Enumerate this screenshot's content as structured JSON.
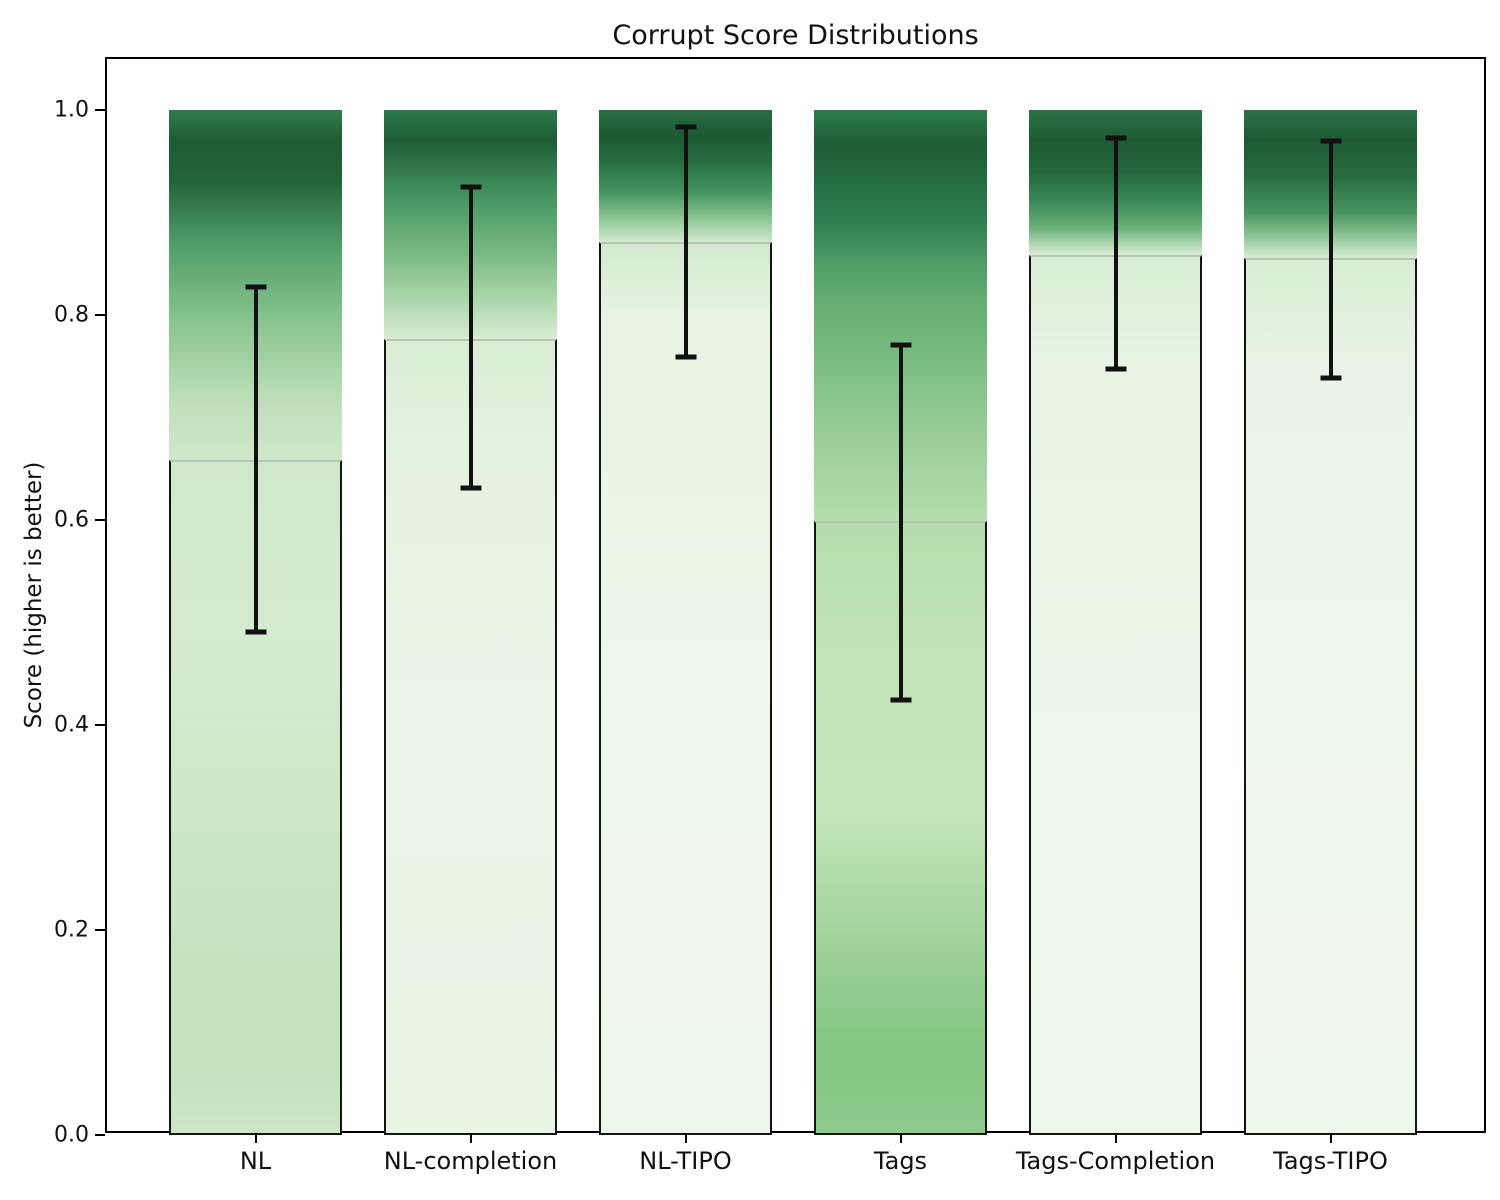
{
  "chart_data": {
    "type": "bar",
    "title": "Corrupt Score Distributions",
    "ylabel": "Score (higher is better)",
    "xlabel": "",
    "ylim": [
      0.0,
      1.0
    ],
    "yticks": [
      0.0,
      0.2,
      0.4,
      0.6,
      0.8,
      1.0
    ],
    "ytick_labels": [
      "0.0",
      "0.2",
      "0.4",
      "0.6",
      "0.8",
      "1.0"
    ],
    "categories": [
      "NL",
      "NL-completion",
      "NL-TIPO",
      "Tags",
      "Tags-Completion",
      "Tags-TIPO"
    ],
    "bar_top": 1.0,
    "grid": false,
    "legend": false,
    "series": [
      {
        "category": "NL",
        "mean": 0.659,
        "err_low": 0.491,
        "err_high": 0.827,
        "gradient": [
          {
            "pos": 0,
            "color": "#2f7d4d"
          },
          {
            "pos": 3,
            "color": "#1e5c35"
          },
          {
            "pos": 7,
            "color": "#236339"
          },
          {
            "pos": 13,
            "color": "#4f9d68"
          },
          {
            "pos": 20,
            "color": "#85c18e"
          },
          {
            "pos": 28,
            "color": "#bcdeb7"
          },
          {
            "pos": 34,
            "color": "#cfe8ca"
          },
          {
            "pos": 50,
            "color": "#d5ebd0"
          },
          {
            "pos": 78,
            "color": "#c8e4c2"
          },
          {
            "pos": 93,
            "color": "#c2e1bc"
          },
          {
            "pos": 100,
            "color": "#cde7c8"
          }
        ]
      },
      {
        "category": "NL-completion",
        "mean": 0.777,
        "err_low": 0.631,
        "err_high": 0.925,
        "gradient": [
          {
            "pos": 0,
            "color": "#2c7a4a"
          },
          {
            "pos": 3,
            "color": "#1e5c35"
          },
          {
            "pos": 9,
            "color": "#4a9964"
          },
          {
            "pos": 14,
            "color": "#7ab984"
          },
          {
            "pos": 19,
            "color": "#b2d9b0"
          },
          {
            "pos": 22.3,
            "color": "#d8edd4"
          },
          {
            "pos": 32,
            "color": "#e4f2e0"
          },
          {
            "pos": 60,
            "color": "#ebf5e8"
          },
          {
            "pos": 100,
            "color": "#e8f4e4"
          }
        ]
      },
      {
        "category": "NL-TIPO",
        "mean": 0.871,
        "err_low": 0.759,
        "err_high": 0.983,
        "gradient": [
          {
            "pos": 0,
            "color": "#2a6e42"
          },
          {
            "pos": 2.5,
            "color": "#1d5a33"
          },
          {
            "pos": 5,
            "color": "#276c3f"
          },
          {
            "pos": 8,
            "color": "#45935f"
          },
          {
            "pos": 10.5,
            "color": "#8cc594"
          },
          {
            "pos": 12.9,
            "color": "#d2eace"
          },
          {
            "pos": 20,
            "color": "#e7f3e3"
          },
          {
            "pos": 60,
            "color": "#edf7ea"
          },
          {
            "pos": 100,
            "color": "#eef7eb"
          }
        ]
      },
      {
        "category": "Tags",
        "mean": 0.599,
        "err_low": 0.424,
        "err_high": 0.771,
        "gradient": [
          {
            "pos": 0,
            "color": "#2d7c4b"
          },
          {
            "pos": 3.5,
            "color": "#1e5c35"
          },
          {
            "pos": 11,
            "color": "#2e8050"
          },
          {
            "pos": 15,
            "color": "#509d67"
          },
          {
            "pos": 19,
            "color": "#67af75"
          },
          {
            "pos": 23,
            "color": "#74b97e"
          },
          {
            "pos": 30,
            "color": "#92c993"
          },
          {
            "pos": 40,
            "color": "#b5dcae"
          },
          {
            "pos": 55,
            "color": "#c2e4b9"
          },
          {
            "pos": 68,
            "color": "#c6e6bd"
          },
          {
            "pos": 83,
            "color": "#9acf94"
          },
          {
            "pos": 92,
            "color": "#82c581"
          },
          {
            "pos": 100,
            "color": "#8fca8c"
          }
        ]
      },
      {
        "category": "Tags-Completion",
        "mean": 0.859,
        "err_low": 0.747,
        "err_high": 0.973,
        "gradient": [
          {
            "pos": 0,
            "color": "#2b7347"
          },
          {
            "pos": 3,
            "color": "#1d5a33"
          },
          {
            "pos": 6,
            "color": "#24663c"
          },
          {
            "pos": 9,
            "color": "#3c8a59"
          },
          {
            "pos": 11.5,
            "color": "#6cb179"
          },
          {
            "pos": 14.1,
            "color": "#d9eed6"
          },
          {
            "pos": 25,
            "color": "#e8f4e4"
          },
          {
            "pos": 70,
            "color": "#edf7ea"
          },
          {
            "pos": 100,
            "color": "#ecf6e9"
          }
        ]
      },
      {
        "category": "Tags-TIPO",
        "mean": 0.856,
        "err_low": 0.739,
        "err_high": 0.97,
        "gradient": [
          {
            "pos": 0,
            "color": "#2b7347"
          },
          {
            "pos": 3,
            "color": "#1d5a33"
          },
          {
            "pos": 6.5,
            "color": "#276c40"
          },
          {
            "pos": 10,
            "color": "#48955f"
          },
          {
            "pos": 12.5,
            "color": "#94c99b"
          },
          {
            "pos": 14.4,
            "color": "#d7edd3"
          },
          {
            "pos": 25,
            "color": "#e9f4e6"
          },
          {
            "pos": 70,
            "color": "#eef7eb"
          },
          {
            "pos": 100,
            "color": "#edf7ea"
          }
        ]
      }
    ],
    "style": {
      "errorbar_color": "#111111",
      "mean_line_color": "#b6c4b4",
      "bar_edge_color": "#141414",
      "spine_color": "#000000",
      "background_color": "#ffffff"
    }
  }
}
